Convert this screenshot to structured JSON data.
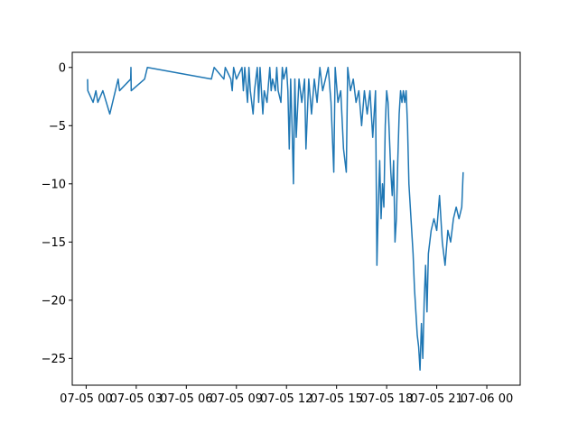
{
  "chart_data": {
    "type": "line",
    "title": "",
    "xlabel": "",
    "ylabel": "",
    "x_axis_type": "time",
    "xlim": [
      "2023-07-04T23:10",
      "2023-07-06T02:00"
    ],
    "ylim": [
      -27.3,
      1.3
    ],
    "x_ticks": [
      {
        "value": "2023-07-05T00:00",
        "label": "07-05 00"
      },
      {
        "value": "2023-07-05T03:00",
        "label": "07-05 03"
      },
      {
        "value": "2023-07-05T06:00",
        "label": "07-05 06"
      },
      {
        "value": "2023-07-05T09:00",
        "label": "07-05 09"
      },
      {
        "value": "2023-07-05T12:00",
        "label": "07-05 12"
      },
      {
        "value": "2023-07-05T15:00",
        "label": "07-05 15"
      },
      {
        "value": "2023-07-05T18:00",
        "label": "07-05 18"
      },
      {
        "value": "2023-07-05T21:00",
        "label": "07-05 21"
      },
      {
        "value": "2023-07-06T00:00",
        "label": "07-06 00"
      }
    ],
    "y_ticks": [
      {
        "value": 0,
        "label": "0"
      },
      {
        "value": -5,
        "label": "−5"
      },
      {
        "value": -10,
        "label": "−10"
      },
      {
        "value": -15,
        "label": "−15"
      },
      {
        "value": -20,
        "label": "−20"
      },
      {
        "value": -25,
        "label": "−25"
      }
    ],
    "grid": false,
    "series": [
      {
        "color": "#1f77b4",
        "points": [
          [
            "2023-07-05T00:05",
            -1
          ],
          [
            "2023-07-05T00:06",
            -2
          ],
          [
            "2023-07-05T00:25",
            -3
          ],
          [
            "2023-07-05T00:35",
            -2
          ],
          [
            "2023-07-05T00:42",
            -3
          ],
          [
            "2023-07-05T01:00",
            -2
          ],
          [
            "2023-07-05T01:25",
            -4
          ],
          [
            "2023-07-05T01:55",
            -1
          ],
          [
            "2023-07-05T02:00",
            -2
          ],
          [
            "2023-07-05T02:40",
            -1
          ],
          [
            "2023-07-05T02:41",
            0
          ],
          [
            "2023-07-05T02:42",
            -2
          ],
          [
            "2023-07-05T03:30",
            -1
          ],
          [
            "2023-07-05T03:40",
            0
          ],
          [
            "2023-07-05T07:30",
            -1
          ],
          [
            "2023-07-05T07:40",
            0
          ],
          [
            "2023-07-05T08:15",
            -1
          ],
          [
            "2023-07-05T08:20",
            0
          ],
          [
            "2023-07-05T08:40",
            -1
          ],
          [
            "2023-07-05T08:45",
            -2
          ],
          [
            "2023-07-05T08:50",
            0
          ],
          [
            "2023-07-05T09:00",
            -1
          ],
          [
            "2023-07-05T09:20",
            0
          ],
          [
            "2023-07-05T09:25",
            -2
          ],
          [
            "2023-07-05T09:30",
            0
          ],
          [
            "2023-07-05T09:40",
            -3
          ],
          [
            "2023-07-05T09:45",
            0
          ],
          [
            "2023-07-05T09:50",
            -2
          ],
          [
            "2023-07-05T10:00",
            -4
          ],
          [
            "2023-07-05T10:05",
            -2
          ],
          [
            "2023-07-05T10:15",
            0
          ],
          [
            "2023-07-05T10:20",
            -3
          ],
          [
            "2023-07-05T10:25",
            0
          ],
          [
            "2023-07-05T10:35",
            -4
          ],
          [
            "2023-07-05T10:40",
            -2
          ],
          [
            "2023-07-05T10:50",
            -3
          ],
          [
            "2023-07-05T11:00",
            0
          ],
          [
            "2023-07-05T11:05",
            -2
          ],
          [
            "2023-07-05T11:10",
            -1
          ],
          [
            "2023-07-05T11:20",
            -2
          ],
          [
            "2023-07-05T11:25",
            0
          ],
          [
            "2023-07-05T11:30",
            -2
          ],
          [
            "2023-07-05T11:40",
            -3
          ],
          [
            "2023-07-05T11:45",
            0
          ],
          [
            "2023-07-05T11:50",
            -1
          ],
          [
            "2023-07-05T12:00",
            0
          ],
          [
            "2023-07-05T12:05",
            -2
          ],
          [
            "2023-07-05T12:10",
            -7
          ],
          [
            "2023-07-05T12:15",
            -1
          ],
          [
            "2023-07-05T12:20",
            -5
          ],
          [
            "2023-07-05T12:25",
            -10
          ],
          [
            "2023-07-05T12:30",
            -1
          ],
          [
            "2023-07-05T12:35",
            -6
          ],
          [
            "2023-07-05T12:45",
            -1
          ],
          [
            "2023-07-05T12:55",
            -3
          ],
          [
            "2023-07-05T13:05",
            -1
          ],
          [
            "2023-07-05T13:10",
            -7
          ],
          [
            "2023-07-05T13:20",
            -1
          ],
          [
            "2023-07-05T13:30",
            -4
          ],
          [
            "2023-07-05T13:40",
            -1
          ],
          [
            "2023-07-05T13:50",
            -3
          ],
          [
            "2023-07-05T14:00",
            0
          ],
          [
            "2023-07-05T14:10",
            -2
          ],
          [
            "2023-07-05T14:20",
            -1
          ],
          [
            "2023-07-05T14:30",
            0
          ],
          [
            "2023-07-05T14:40",
            -3
          ],
          [
            "2023-07-05T14:50",
            -9
          ],
          [
            "2023-07-05T14:55",
            0
          ],
          [
            "2023-07-05T15:05",
            -3
          ],
          [
            "2023-07-05T15:15",
            -2
          ],
          [
            "2023-07-05T15:25",
            -7
          ],
          [
            "2023-07-05T15:35",
            -9
          ],
          [
            "2023-07-05T15:40",
            0
          ],
          [
            "2023-07-05T15:50",
            -2
          ],
          [
            "2023-07-05T16:00",
            -1
          ],
          [
            "2023-07-05T16:10",
            -3
          ],
          [
            "2023-07-05T16:20",
            -2
          ],
          [
            "2023-07-05T16:30",
            -5
          ],
          [
            "2023-07-05T16:40",
            -2
          ],
          [
            "2023-07-05T16:50",
            -4
          ],
          [
            "2023-07-05T17:00",
            -2
          ],
          [
            "2023-07-05T17:10",
            -6
          ],
          [
            "2023-07-05T17:20",
            -2
          ],
          [
            "2023-07-05T17:25",
            -17
          ],
          [
            "2023-07-05T17:30",
            -12
          ],
          [
            "2023-07-05T17:35",
            -8
          ],
          [
            "2023-07-05T17:40",
            -13
          ],
          [
            "2023-07-05T17:45",
            -10
          ],
          [
            "2023-07-05T17:50",
            -12
          ],
          [
            "2023-07-05T17:55",
            -5
          ],
          [
            "2023-07-05T18:00",
            -2
          ],
          [
            "2023-07-05T18:05",
            -3
          ],
          [
            "2023-07-05T18:10",
            -6
          ],
          [
            "2023-07-05T18:15",
            -9
          ],
          [
            "2023-07-05T18:20",
            -11
          ],
          [
            "2023-07-05T18:25",
            -8
          ],
          [
            "2023-07-05T18:30",
            -15
          ],
          [
            "2023-07-05T18:35",
            -13
          ],
          [
            "2023-07-05T18:40",
            -8
          ],
          [
            "2023-07-05T18:45",
            -4
          ],
          [
            "2023-07-05T18:50",
            -2
          ],
          [
            "2023-07-05T18:55",
            -3
          ],
          [
            "2023-07-05T19:00",
            -2
          ],
          [
            "2023-07-05T19:05",
            -3
          ],
          [
            "2023-07-05T19:10",
            -2
          ],
          [
            "2023-07-05T19:15",
            -5
          ],
          [
            "2023-07-05T19:20",
            -10
          ],
          [
            "2023-07-05T19:25",
            -12
          ],
          [
            "2023-07-05T19:30",
            -14
          ],
          [
            "2023-07-05T19:35",
            -16
          ],
          [
            "2023-07-05T19:40",
            -19
          ],
          [
            "2023-07-05T19:45",
            -21
          ],
          [
            "2023-07-05T19:50",
            -23
          ],
          [
            "2023-07-05T19:55",
            -24
          ],
          [
            "2023-07-05T20:00",
            -26
          ],
          [
            "2023-07-05T20:05",
            -22
          ],
          [
            "2023-07-05T20:10",
            -25
          ],
          [
            "2023-07-05T20:15",
            -20
          ],
          [
            "2023-07-05T20:20",
            -17
          ],
          [
            "2023-07-05T20:25",
            -21
          ],
          [
            "2023-07-05T20:30",
            -16
          ],
          [
            "2023-07-05T20:40",
            -14
          ],
          [
            "2023-07-05T20:50",
            -13
          ],
          [
            "2023-07-05T21:00",
            -14
          ],
          [
            "2023-07-05T21:10",
            -11
          ],
          [
            "2023-07-05T21:20",
            -15
          ],
          [
            "2023-07-05T21:30",
            -17
          ],
          [
            "2023-07-05T21:40",
            -14
          ],
          [
            "2023-07-05T21:50",
            -15
          ],
          [
            "2023-07-05T22:00",
            -13
          ],
          [
            "2023-07-05T22:10",
            -12
          ],
          [
            "2023-07-05T22:20",
            -13
          ],
          [
            "2023-07-05T22:30",
            -12
          ],
          [
            "2023-07-05T22:35",
            -9
          ]
        ]
      }
    ]
  }
}
